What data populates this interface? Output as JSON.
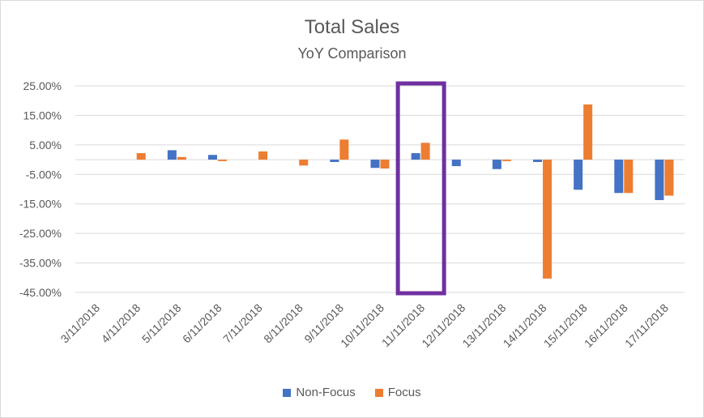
{
  "chart_data": {
    "type": "bar",
    "title": "Total Sales",
    "subtitle": "YoY Comparison",
    "xlabel": "",
    "ylabel": "",
    "ylim": [
      -0.45,
      0.25
    ],
    "yticks": [
      0.25,
      0.15,
      0.05,
      -0.05,
      -0.15,
      -0.25,
      -0.35,
      -0.45
    ],
    "ytick_labels": [
      "25.00%",
      "15.00%",
      "5.00%",
      "-5.00%",
      "-15.00%",
      "-25.00%",
      "-35.00%",
      "-45.00%"
    ],
    "categories": [
      "3/11/2018",
      "4/11/2018",
      "5/11/2018",
      "6/11/2018",
      "7/11/2018",
      "8/11/2018",
      "9/11/2018",
      "10/11/2018",
      "11/11/2018",
      "12/11/2018",
      "13/11/2018",
      "14/11/2018",
      "15/11/2018",
      "16/11/2018",
      "17/11/2018"
    ],
    "series": [
      {
        "name": "Non-Focus",
        "color": "#4472c4",
        "values": [
          0.0,
          0.0,
          0.032,
          0.016,
          0.0,
          0.0,
          -0.008,
          -0.028,
          0.022,
          -0.022,
          -0.032,
          -0.008,
          -0.102,
          -0.113,
          -0.137
        ]
      },
      {
        "name": "Focus",
        "color": "#ed7d31",
        "values": [
          0.0,
          0.022,
          0.009,
          -0.005,
          0.028,
          -0.02,
          0.068,
          -0.03,
          0.057,
          0.0,
          -0.005,
          -0.403,
          0.187,
          -0.113,
          -0.122
        ]
      }
    ],
    "grid": true,
    "legend_position": "bottom",
    "highlight": {
      "category": "11/11/2018",
      "color": "#7030a0"
    }
  }
}
